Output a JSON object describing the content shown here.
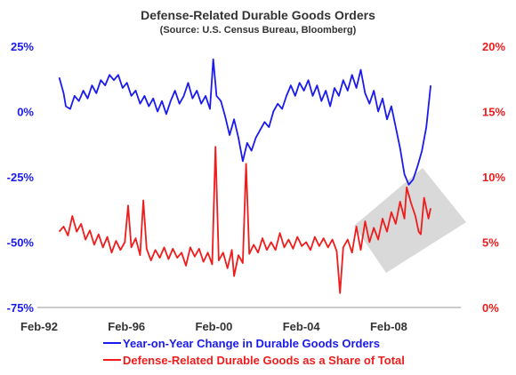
{
  "chart_data": {
    "type": "line",
    "title": "Defense-Related Durable Goods Orders",
    "subtitle": "(Source: U.S. Census Bureau, Bloomberg)",
    "xlabel": "",
    "x_ticks": [
      "Feb-92",
      "Feb-96",
      "Feb-00",
      "Feb-04",
      "Feb-08"
    ],
    "x_range": [
      1992.08,
      2011.3
    ],
    "left_axis": {
      "ylabel": "",
      "range": [
        -75,
        25
      ],
      "ticks": [
        "25%",
        "0%",
        "-25%",
        "-50%",
        "-75%"
      ],
      "tick_values": [
        25,
        0,
        -25,
        -50,
        -75
      ],
      "color": "#1a1aee"
    },
    "right_axis": {
      "ylabel": "",
      "range": [
        0,
        20
      ],
      "ticks": [
        "20%",
        "15%",
        "10%",
        "5%",
        "0%"
      ],
      "tick_values": [
        20,
        15,
        10,
        5,
        0
      ],
      "color": "#ee1c1c"
    },
    "legend": {
      "placement": "bottom",
      "entries": [
        {
          "label": "Year-on-Year Change in Durable Goods Orders",
          "color": "#1a1aee"
        },
        {
          "label": "Defense-Related Durable Goods as a Share of Total",
          "color": "#ee1c1c"
        }
      ]
    },
    "grid": false,
    "highlight_box_color": "#d9d9d9",
    "series": [
      {
        "axis": "left",
        "color": "#1a1aee",
        "points": [
          [
            1993.0,
            13
          ],
          [
            1993.2,
            7
          ],
          [
            1993.3,
            2
          ],
          [
            1993.5,
            1
          ],
          [
            1993.7,
            6
          ],
          [
            1993.9,
            4
          ],
          [
            1994.1,
            8
          ],
          [
            1994.3,
            5
          ],
          [
            1994.5,
            10
          ],
          [
            1994.7,
            7
          ],
          [
            1994.9,
            12
          ],
          [
            1995.1,
            10
          ],
          [
            1995.3,
            14
          ],
          [
            1995.5,
            12
          ],
          [
            1995.7,
            14
          ],
          [
            1995.9,
            9
          ],
          [
            1996.1,
            11
          ],
          [
            1996.3,
            6
          ],
          [
            1996.5,
            8
          ],
          [
            1996.7,
            3
          ],
          [
            1996.9,
            6
          ],
          [
            1997.1,
            2
          ],
          [
            1997.3,
            5
          ],
          [
            1997.5,
            0
          ],
          [
            1997.7,
            4
          ],
          [
            1997.9,
            -1
          ],
          [
            1998.1,
            4
          ],
          [
            1998.3,
            8
          ],
          [
            1998.5,
            3
          ],
          [
            1998.7,
            6
          ],
          [
            1998.9,
            11
          ],
          [
            1999.1,
            5
          ],
          [
            1999.3,
            8
          ],
          [
            1999.5,
            3
          ],
          [
            1999.7,
            6
          ],
          [
            1999.9,
            1
          ],
          [
            2000.05,
            20
          ],
          [
            2000.2,
            6
          ],
          [
            2000.4,
            4
          ],
          [
            2000.6,
            -2
          ],
          [
            2000.8,
            -9
          ],
          [
            2001.0,
            -3
          ],
          [
            2001.2,
            -10
          ],
          [
            2001.4,
            -19
          ],
          [
            2001.6,
            -12
          ],
          [
            2001.8,
            -15
          ],
          [
            2002.0,
            -10
          ],
          [
            2002.2,
            -7
          ],
          [
            2002.4,
            -4
          ],
          [
            2002.6,
            -6
          ],
          [
            2002.8,
            0
          ],
          [
            2003.0,
            3
          ],
          [
            2003.2,
            1
          ],
          [
            2003.4,
            6
          ],
          [
            2003.6,
            10
          ],
          [
            2003.8,
            6
          ],
          [
            2004.0,
            11
          ],
          [
            2004.2,
            8
          ],
          [
            2004.4,
            12
          ],
          [
            2004.6,
            6
          ],
          [
            2004.8,
            10
          ],
          [
            2005.0,
            4
          ],
          [
            2005.2,
            8
          ],
          [
            2005.4,
            2
          ],
          [
            2005.6,
            9
          ],
          [
            2005.8,
            6
          ],
          [
            2006.0,
            12
          ],
          [
            2006.2,
            8
          ],
          [
            2006.4,
            14
          ],
          [
            2006.6,
            9
          ],
          [
            2006.8,
            16
          ],
          [
            2007.0,
            7
          ],
          [
            2007.2,
            3
          ],
          [
            2007.4,
            8
          ],
          [
            2007.6,
            0
          ],
          [
            2007.8,
            5
          ],
          [
            2008.0,
            -3
          ],
          [
            2008.2,
            2
          ],
          [
            2008.4,
            -6
          ],
          [
            2008.6,
            -14
          ],
          [
            2008.8,
            -24
          ],
          [
            2009.0,
            -28
          ],
          [
            2009.2,
            -26
          ],
          [
            2009.4,
            -21
          ],
          [
            2009.6,
            -15
          ],
          [
            2009.8,
            -6
          ],
          [
            2010.0,
            10
          ]
        ]
      },
      {
        "axis": "right",
        "color": "#ee1c1c",
        "points": [
          [
            1993.0,
            5.8
          ],
          [
            1993.2,
            6.2
          ],
          [
            1993.4,
            5.5
          ],
          [
            1993.6,
            7.0
          ],
          [
            1993.8,
            5.8
          ],
          [
            1994.0,
            6.4
          ],
          [
            1994.2,
            5.2
          ],
          [
            1994.4,
            5.9
          ],
          [
            1994.6,
            4.8
          ],
          [
            1994.8,
            5.6
          ],
          [
            1995.0,
            4.6
          ],
          [
            1995.2,
            5.4
          ],
          [
            1995.4,
            4.2
          ],
          [
            1995.6,
            5.1
          ],
          [
            1995.8,
            4.4
          ],
          [
            1996.0,
            5.0
          ],
          [
            1996.15,
            7.8
          ],
          [
            1996.3,
            4.6
          ],
          [
            1996.5,
            5.3
          ],
          [
            1996.7,
            4.0
          ],
          [
            1996.85,
            8.2
          ],
          [
            1997.0,
            4.5
          ],
          [
            1997.2,
            3.6
          ],
          [
            1997.4,
            4.4
          ],
          [
            1997.6,
            3.8
          ],
          [
            1997.8,
            4.6
          ],
          [
            1998.0,
            3.7
          ],
          [
            1998.2,
            4.5
          ],
          [
            1998.4,
            3.8
          ],
          [
            1998.6,
            4.2
          ],
          [
            1998.8,
            3.2
          ],
          [
            1999.0,
            4.6
          ],
          [
            1999.2,
            3.9
          ],
          [
            1999.4,
            4.5
          ],
          [
            1999.6,
            3.5
          ],
          [
            1999.8,
            4.2
          ],
          [
            2000.0,
            3.3
          ],
          [
            2000.15,
            12.3
          ],
          [
            2000.3,
            3.6
          ],
          [
            2000.5,
            4.2
          ],
          [
            2000.7,
            3.0
          ],
          [
            2000.9,
            4.4
          ],
          [
            2001.0,
            2.4
          ],
          [
            2001.2,
            4.0
          ],
          [
            2001.4,
            3.4
          ],
          [
            2001.55,
            11.0
          ],
          [
            2001.7,
            4.1
          ],
          [
            2001.9,
            4.8
          ],
          [
            2002.1,
            4.2
          ],
          [
            2002.3,
            5.3
          ],
          [
            2002.5,
            4.4
          ],
          [
            2002.7,
            5.0
          ],
          [
            2002.9,
            4.4
          ],
          [
            2003.1,
            5.7
          ],
          [
            2003.3,
            4.6
          ],
          [
            2003.5,
            5.2
          ],
          [
            2003.7,
            4.5
          ],
          [
            2003.9,
            5.4
          ],
          [
            2004.1,
            4.7
          ],
          [
            2004.3,
            5.0
          ],
          [
            2004.5,
            4.4
          ],
          [
            2004.7,
            5.4
          ],
          [
            2004.9,
            4.7
          ],
          [
            2005.1,
            5.3
          ],
          [
            2005.3,
            4.6
          ],
          [
            2005.5,
            5.2
          ],
          [
            2005.7,
            4.3
          ],
          [
            2005.85,
            1.1
          ],
          [
            2006.0,
            4.6
          ],
          [
            2006.2,
            5.2
          ],
          [
            2006.4,
            4.2
          ],
          [
            2006.6,
            6.2
          ],
          [
            2006.8,
            4.4
          ],
          [
            2007.0,
            6.6
          ],
          [
            2007.2,
            5.0
          ],
          [
            2007.4,
            6.1
          ],
          [
            2007.6,
            5.2
          ],
          [
            2007.8,
            6.8
          ],
          [
            2008.0,
            5.8
          ],
          [
            2008.2,
            7.3
          ],
          [
            2008.4,
            6.4
          ],
          [
            2008.6,
            8.1
          ],
          [
            2008.8,
            6.8
          ],
          [
            2008.9,
            9.2
          ],
          [
            2009.1,
            8.0
          ],
          [
            2009.3,
            7.0
          ],
          [
            2009.45,
            5.8
          ],
          [
            2009.55,
            5.6
          ],
          [
            2009.7,
            8.4
          ],
          [
            2009.9,
            6.8
          ],
          [
            2010.0,
            7.6
          ]
        ]
      }
    ]
  }
}
